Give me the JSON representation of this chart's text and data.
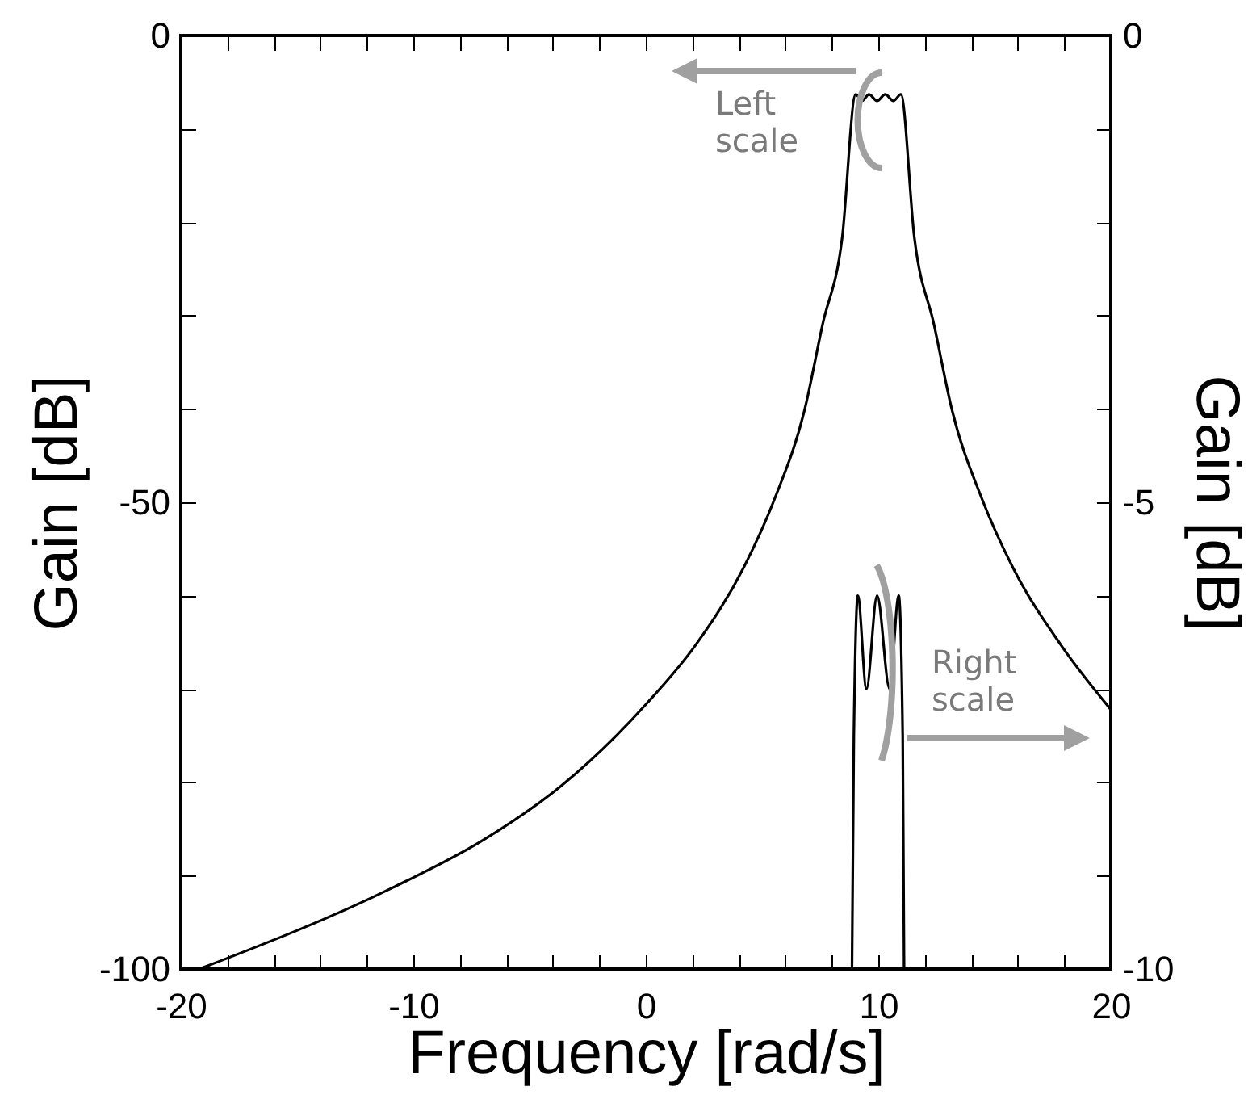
{
  "chart_data": {
    "type": "line",
    "xlabel": "Frequency [rad/s]",
    "ylabel": "Gain [dB]",
    "y2label": "Gain [dB]",
    "xlim": [
      -20,
      20
    ],
    "xticks": [
      -20,
      {
        "value": -18,
        "label": null
      },
      {
        "value": -16,
        "label": null
      },
      {
        "value": -14,
        "label": null
      },
      {
        "value": -12,
        "label": null
      },
      -10,
      {
        "value": -8,
        "label": null
      },
      {
        "value": -6,
        "label": null
      },
      {
        "value": -4,
        "label": null
      },
      {
        "value": -2,
        "label": null
      },
      0,
      {
        "value": 2,
        "label": null
      },
      {
        "value": 4,
        "label": null
      },
      {
        "value": 6,
        "label": null
      },
      {
        "value": 8,
        "label": null
      },
      10,
      {
        "value": 12,
        "label": null
      },
      {
        "value": 14,
        "label": null
      },
      {
        "value": 16,
        "label": null
      },
      {
        "value": 18,
        "label": null
      },
      20
    ],
    "ylim": [
      -100,
      0
    ],
    "yticks": [
      -100,
      {
        "value": -90,
        "label": null
      },
      {
        "value": -80,
        "label": null
      },
      {
        "value": -70,
        "label": null
      },
      {
        "value": -60,
        "label": null
      },
      -50,
      {
        "value": -40,
        "label": null
      },
      {
        "value": -30,
        "label": null
      },
      {
        "value": -20,
        "label": null
      },
      {
        "value": -10,
        "label": null
      },
      0
    ],
    "y2lim": [
      -10,
      0
    ],
    "y2ticks": [
      -10,
      {
        "value": -9,
        "label": null
      },
      {
        "value": -8,
        "label": null
      },
      {
        "value": -7,
        "label": null
      },
      {
        "value": -6,
        "label": null
      },
      -5,
      {
        "value": -4,
        "label": null
      },
      {
        "value": -3,
        "label": null
      },
      {
        "value": -2,
        "label": null
      },
      {
        "value": -1,
        "label": null
      },
      0
    ],
    "series": [
      {
        "color": "#000000",
        "x": [
          -19.2,
          -10.9,
          -7.0,
          -3.6,
          0.06,
          2.14,
          4.23,
          5.53,
          6.84,
          7.6,
          8.45,
          9.03,
          9.3,
          9.6,
          9.95,
          10.3,
          10.65,
          10.97,
          11.55,
          12.4,
          13.16,
          14.47,
          15.77,
          17.86,
          20
        ],
        "values": [
          -100,
          -91.3,
          -86.2,
          -80.3,
          -71.5,
          -65.3,
          -56.9,
          -49.7,
          -40,
          -31,
          -21.6,
          -6.3,
          -7,
          -6.3,
          -7,
          -6.3,
          -7,
          -6.3,
          -21.6,
          -31,
          -40,
          -49.7,
          -56.9,
          -65.3,
          -72.2
        ]
      },
      {
        "color": "#000000",
        "axis": "y2",
        "x": [
          8.87,
          8.95,
          9.12,
          9.49,
          9.95,
          10.49,
          10.88,
          11.05,
          11.11
        ],
        "values": [
          -10,
          -7.5,
          -6,
          -7,
          -6,
          -7,
          -6,
          -7.5,
          -10
        ]
      }
    ],
    "annotations": [
      "Left scale",
      "Right scale"
    ]
  }
}
